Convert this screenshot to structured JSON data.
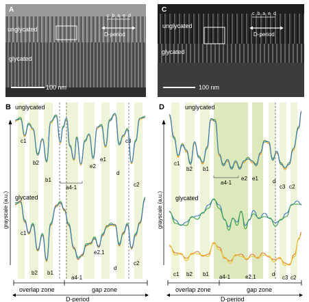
{
  "panels": {
    "A": {
      "letter": "A",
      "top_label": "unglycated",
      "bottom_label": "glycated",
      "scale": "100 nm",
      "bands": "c b a e d",
      "period": "D-period"
    },
    "C": {
      "letter": "C",
      "top_label": "unglycated",
      "bottom_label": "glycated",
      "scale": "100 nm",
      "bands": "c b a e d",
      "period": "D-period"
    },
    "B": {
      "letter": "B",
      "top_title": "unglycated",
      "bottom_title": "glycated",
      "top_labels": [
        "c1",
        "b2",
        "b1",
        "a4-1",
        "e2",
        "e1",
        "d",
        "c3",
        "c2"
      ],
      "bottom_labels": [
        "c1",
        "b2",
        "b1",
        "a4-1",
        "e2,1",
        "d",
        "c2"
      ]
    },
    "D": {
      "letter": "D",
      "top_title": "unglycated",
      "mid_title": "glycated",
      "top_labels": [
        "c1",
        "b2",
        "b1",
        "a4-1",
        "e2",
        "e1",
        "d",
        "c3",
        "c2"
      ],
      "bottom_labels": [
        "c1",
        "b2",
        "b1",
        "a4-1",
        "e2,1",
        "d",
        "c3",
        "c2"
      ]
    }
  },
  "y_axis_label": "grayscale (a.u.)",
  "zones": {
    "overlap": "overlap zone",
    "gap": "gap zone",
    "period": "D-period"
  },
  "colors": {
    "orange": "#e8702a",
    "yellow": "#e8c72a",
    "green": "#3aa640",
    "blue": "#3a78c8",
    "shade": "#eef4d8",
    "shade_dark": "#dde9bd"
  }
}
